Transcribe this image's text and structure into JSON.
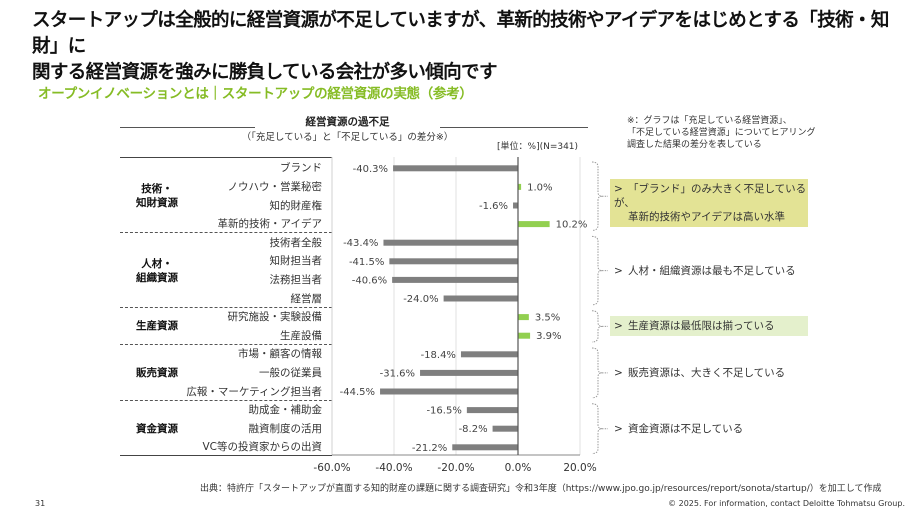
{
  "header": {
    "headline_line1": "スタートアップは全般的に経営資源が不足していますが、革新的技術やアイデアをはじめとする「技術・知財」に",
    "headline_line2": "関する経営資源を強みに勝負している会社が多い傾向です",
    "subtitle": "オープンイノベーションとは｜スタートアップの経営資源の実態（参考）"
  },
  "colors": {
    "accent": "#86bc25",
    "bar_negative": "#7f7f7f",
    "bar_positive": "#92d050",
    "highlight_yellow": "#e3e395",
    "highlight_green": "#e4f0cc"
  },
  "chart_data": {
    "type": "bar",
    "orientation": "horizontal",
    "title": "経営資源の過不足",
    "subtitle": "（「充足している」と「不足している」の差分※）",
    "unit_label": "[単位：%](N=341)",
    "xlim": [
      -60,
      20
    ],
    "x_ticks": [
      "-60.0%",
      "-40.0%",
      "-20.0%",
      "0.0%",
      "20.0%"
    ],
    "x_tick_values": [
      -60,
      -40,
      -20,
      0,
      20
    ],
    "grid": true,
    "groups": [
      {
        "name_line1": "技術・",
        "name_line2": "知財資源",
        "start": 0,
        "count": 4
      },
      {
        "name_line1": "人材・",
        "name_line2": "組織資源",
        "start": 4,
        "count": 4
      },
      {
        "name_line1": "生産資源",
        "name_line2": "",
        "start": 8,
        "count": 2
      },
      {
        "name_line1": "販売資源",
        "name_line2": "",
        "start": 10,
        "count": 3
      },
      {
        "name_line1": "資金資源",
        "name_line2": "",
        "start": 13,
        "count": 3
      }
    ],
    "categories": [
      "ブランド",
      "ノウハウ・営業秘密",
      "知的財産権",
      "革新的技術・アイデア",
      "技術者全般",
      "知財担当者",
      "法務担当者",
      "経営層",
      "研究施設・実験設備",
      "生産設備",
      "市場・顧客の情報",
      "一般の従業員",
      "広報・マーケティング担当者",
      "助成金・補助金",
      "融資制度の活用",
      "VC等の投資家からの出資"
    ],
    "values": [
      -40.3,
      1.0,
      -1.6,
      10.2,
      -43.4,
      -41.5,
      -40.6,
      -24.0,
      3.5,
      3.9,
      -18.4,
      -31.6,
      -44.5,
      -16.5,
      -8.2,
      -21.2
    ],
    "value_labels": [
      "-40.3%",
      "1.0%",
      "-1.6%",
      "10.2%",
      "-43.4%",
      "-41.5%",
      "-40.6%",
      "-24.0%",
      "3.5%",
      "3.9%",
      "-18.4%",
      "-31.6%",
      "-44.5%",
      "-16.5%",
      "-8.2%",
      "-21.2%"
    ]
  },
  "footnote": {
    "line1": "※：グラフは「充足している経営資源」、",
    "line2": "「不足している経営資源」についてヒアリング",
    "line3": "調査した結果の差分を表している"
  },
  "comments": [
    {
      "arrow": ">",
      "line1": "「ブランド」のみ大きく不足しているが、",
      "line2": "革新的技術やアイデアは高い水準",
      "highlight": "yellow"
    },
    {
      "arrow": ">",
      "line1": "人材・組織資源は最も不足している",
      "line2": "",
      "highlight": "none"
    },
    {
      "arrow": ">",
      "line1": "生産資源は最低限は揃っている",
      "line2": "",
      "highlight": "green"
    },
    {
      "arrow": ">",
      "line1": "販売資源は、大きく不足している",
      "line2": "",
      "highlight": "none"
    },
    {
      "arrow": ">",
      "line1": "資金資源は不足している",
      "line2": "",
      "highlight": "none"
    }
  ],
  "footer": {
    "source": "出典：特許庁「スタートアップが直面する知的財産の課題に関する調査研究」令和3年度（https://www.jpo.go.jp/resources/report/sonota/startup/）を加工して作成",
    "page_number": "31",
    "copyright": "© 2025. For information, contact Deloitte Tohmatsu Group."
  }
}
